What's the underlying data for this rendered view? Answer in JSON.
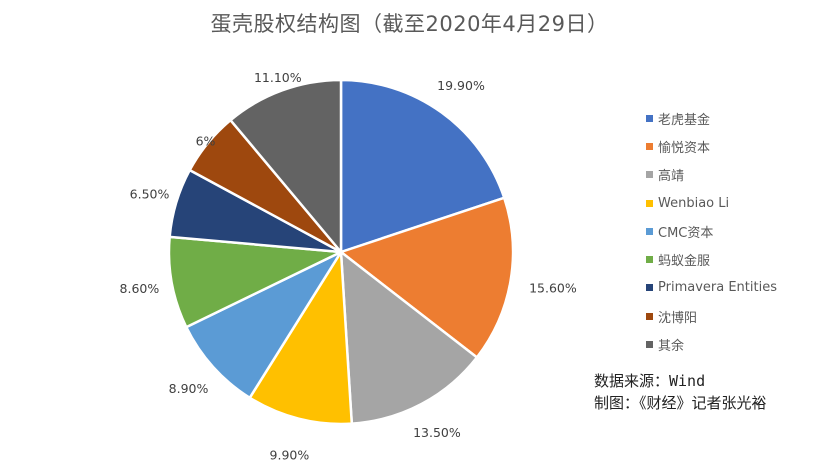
{
  "chart_data": {
    "type": "pie",
    "title": "蛋壳股权结构图（截至2020年4月29日）",
    "start_angle_deg": 0,
    "direction": "clockwise",
    "categories": [
      "老虎基金",
      "愉悦资本",
      "高靖",
      "Wenbiao Li",
      "CMC资本",
      "蚂蚁金服",
      "Primavera Entities",
      "沈博阳",
      "其余"
    ],
    "values": [
      19.9,
      15.6,
      13.5,
      9.9,
      8.9,
      8.6,
      6.5,
      6.0,
      11.1
    ],
    "data_labels": [
      "19.90%",
      "15.60%",
      "13.50%",
      "9.90%",
      "8.90%",
      "8.60%",
      "6.50%",
      "6%",
      "11.10%"
    ],
    "colors": [
      "#4472C4",
      "#ED7D31",
      "#A5A5A5",
      "#FFC000",
      "#5B9BD5",
      "#70AD47",
      "#264478",
      "#9E480E",
      "#636363"
    ],
    "legend_position": "right",
    "units": "%"
  },
  "title": "蛋壳股权结构图（截至2020年4月29日）",
  "legend": {
    "items": [
      {
        "label": "老虎基金",
        "color": "#4472C4"
      },
      {
        "label": "愉悦资本",
        "color": "#ED7D31"
      },
      {
        "label": "高靖",
        "color": "#A5A5A5"
      },
      {
        "label": "Wenbiao Li",
        "color": "#FFC000"
      },
      {
        "label": "CMC资本",
        "color": "#5B9BD5"
      },
      {
        "label": "蚂蚁金服",
        "color": "#70AD47"
      },
      {
        "label": "Primavera Entities",
        "color": "#264478"
      },
      {
        "label": "沈博阳",
        "color": "#9E480E"
      },
      {
        "label": "其余",
        "color": "#636363"
      }
    ]
  },
  "source": {
    "line1": "数据来源：Wind",
    "line2": "制图：《财经》记者张光裕"
  }
}
